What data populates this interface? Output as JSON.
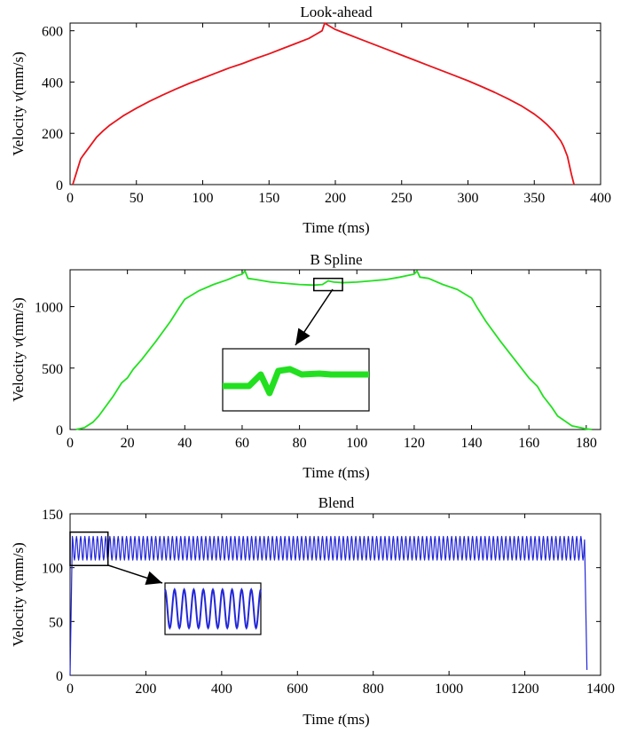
{
  "chart_data": [
    {
      "type": "line",
      "title": "Look-ahead",
      "xlabel": "Time",
      "xvar": "t",
      "xunit": "(ms)",
      "ylabel": "Velocity",
      "yvar": "v",
      "yunit": "(mm/s)",
      "xlim": [
        0,
        400
      ],
      "ylim": [
        0,
        630
      ],
      "xticks": [
        0,
        50,
        100,
        150,
        200,
        250,
        300,
        350,
        400
      ],
      "yticks": [
        0,
        200,
        400,
        600
      ],
      "grid": false,
      "series": [
        {
          "color": "#e8141b",
          "x": [
            2,
            5,
            8,
            10,
            15,
            20,
            25,
            30,
            40,
            50,
            60,
            70,
            80,
            90,
            100,
            110,
            120,
            130,
            140,
            150,
            160,
            170,
            180,
            185,
            190,
            192,
            195,
            200,
            210,
            220,
            230,
            240,
            250,
            260,
            270,
            280,
            290,
            300,
            310,
            320,
            330,
            340,
            350,
            355,
            360,
            365,
            370,
            372,
            375,
            378,
            380
          ],
          "y": [
            0,
            50,
            100,
            115,
            150,
            185,
            210,
            232,
            268,
            298,
            325,
            350,
            373,
            395,
            415,
            435,
            455,
            472,
            492,
            510,
            530,
            550,
            570,
            585,
            600,
            630,
            620,
            605,
            585,
            565,
            545,
            525,
            505,
            485,
            465,
            445,
            425,
            405,
            383,
            360,
            335,
            308,
            275,
            255,
            232,
            205,
            170,
            150,
            110,
            40,
            0
          ]
        }
      ]
    },
    {
      "type": "line",
      "title": "B Spline",
      "xlabel": "Time",
      "xvar": "t",
      "xunit": "(ms)",
      "ylabel": "Velocity",
      "yvar": "v",
      "yunit": "(mm/s)",
      "xlim": [
        0,
        185
      ],
      "ylim": [
        0,
        1300
      ],
      "xticks": [
        0,
        20,
        40,
        60,
        80,
        100,
        120,
        140,
        160,
        180
      ],
      "yticks": [
        0,
        500,
        1000
      ],
      "grid": false,
      "series": [
        {
          "color": "#22e01f",
          "x": [
            2,
            5,
            8,
            10,
            15,
            18,
            20,
            22,
            25,
            30,
            35,
            38,
            40,
            45,
            50,
            55,
            58,
            60,
            61,
            62,
            65,
            70,
            75,
            80,
            85,
            88,
            90,
            92,
            95,
            100,
            105,
            110,
            115,
            118,
            120,
            121,
            122,
            125,
            130,
            135,
            140,
            142,
            145,
            150,
            155,
            160,
            163,
            165,
            168,
            170,
            175,
            180,
            182
          ],
          "y": [
            0,
            15,
            60,
            110,
            270,
            380,
            420,
            490,
            570,
            720,
            880,
            990,
            1060,
            1130,
            1180,
            1220,
            1250,
            1265,
            1290,
            1230,
            1220,
            1200,
            1190,
            1180,
            1175,
            1180,
            1210,
            1200,
            1195,
            1200,
            1210,
            1220,
            1240,
            1255,
            1265,
            1290,
            1240,
            1230,
            1180,
            1140,
            1070,
            990,
            880,
            720,
            570,
            420,
            350,
            270,
            180,
            110,
            30,
            5,
            0
          ]
        }
      ],
      "inset": {
        "x": [
          85,
          95
        ],
        "y": [
          1130,
          1230
        ]
      }
    },
    {
      "type": "line",
      "title": "Blend",
      "xlabel": "Time",
      "xvar": "t",
      "xunit": "(ms)",
      "ylabel": "Velocity",
      "yvar": "v",
      "yunit": "(mm/s)",
      "xlim": [
        0,
        1400
      ],
      "ylim": [
        0,
        150
      ],
      "xticks": [
        0,
        200,
        400,
        600,
        800,
        1000,
        1200,
        1400
      ],
      "yticks": [
        0,
        50,
        100,
        150
      ],
      "grid": false,
      "series": [
        {
          "color": "#2327d8",
          "oscillation": {
            "x_start": 6,
            "x_end": 1358,
            "y_min": 107,
            "y_max": 129,
            "period": 11
          },
          "ramp_up": {
            "x": [
              0,
              6
            ],
            "y": [
              0,
              118
            ]
          },
          "ramp_down": {
            "x": [
              1358,
              1364
            ],
            "y": [
              118,
              5
            ]
          }
        }
      ],
      "inset": {
        "x": [
          0,
          100
        ],
        "y": [
          102,
          133
        ]
      }
    }
  ]
}
